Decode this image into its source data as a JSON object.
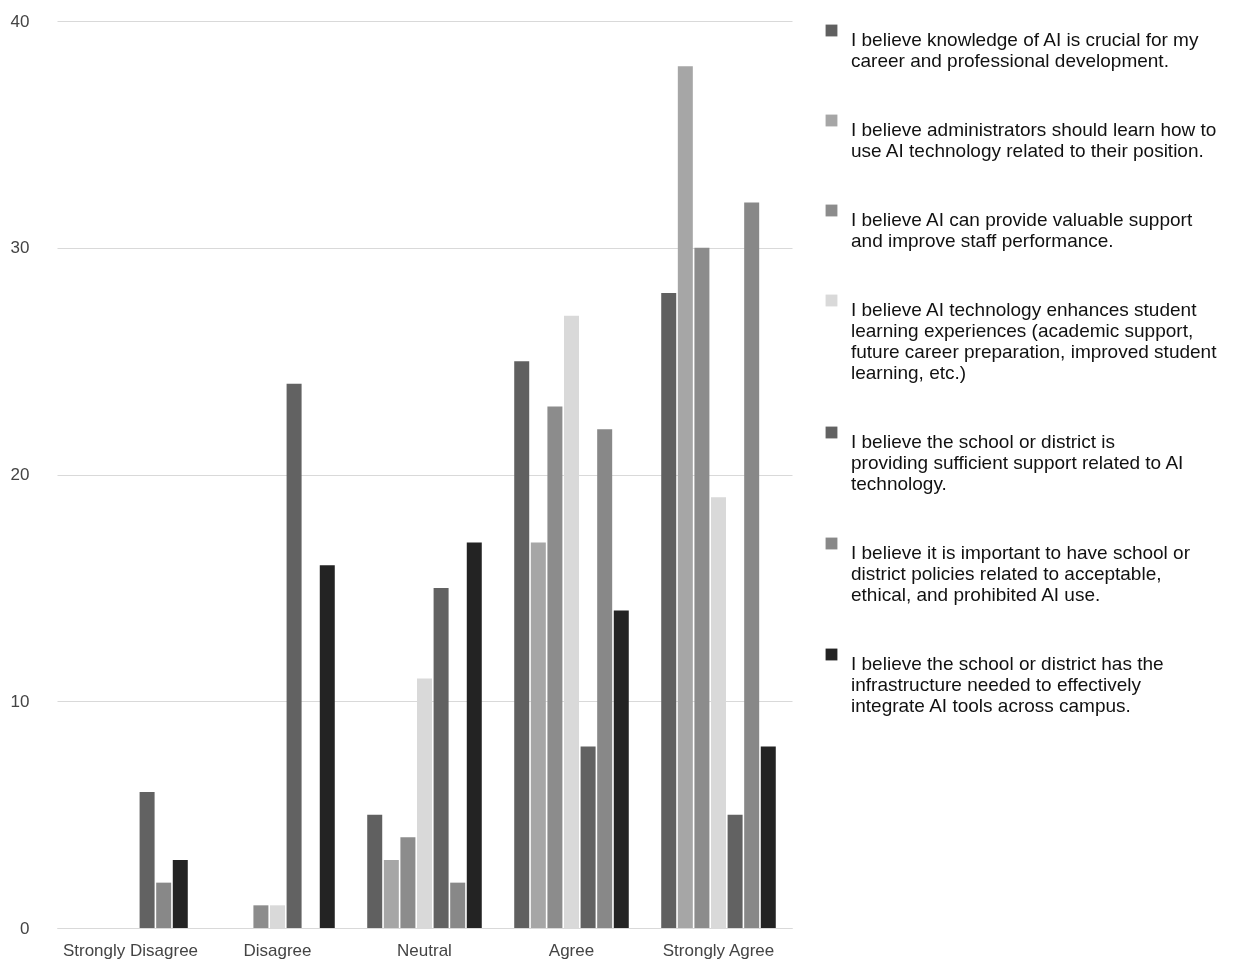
{
  "chart_data": {
    "type": "bar",
    "categories": [
      "Strongly Disagree",
      "Disagree",
      "Neutral",
      "Agree",
      "Strongly Agree"
    ],
    "series": [
      {
        "name": "I believe knowledge of AI is crucial for my career and professional development.",
        "color": "#606060",
        "values": [
          0,
          0,
          5,
          25,
          28
        ]
      },
      {
        "name": "I believe administrators should learn how to use AI technology related to their position.",
        "color": "#a6a6a6",
        "values": [
          0,
          0,
          3,
          17,
          38
        ]
      },
      {
        "name": "I believe AI can provide valuable support and improve staff performance.",
        "color": "#8c8c8c",
        "values": [
          0,
          1,
          4,
          23,
          30
        ]
      },
      {
        "name": "I believe AI technology enhances student learning experiences (academic support, future career preparation, improved student learning, etc.)",
        "color": "#d9d9d9",
        "values": [
          0,
          1,
          11,
          27,
          19
        ]
      },
      {
        "name": "I believe the school or district is providing sufficient support related to AI technology.",
        "color": "#626262",
        "values": [
          6,
          24,
          15,
          8,
          5
        ]
      },
      {
        "name": "I believe it is important to have school or district policies related to acceptable, ethical, and prohibited AI use.",
        "color": "#888888",
        "values": [
          2,
          0,
          2,
          22,
          32
        ]
      },
      {
        "name": "I believe the school or district has the infrastructure needed to effectively integrate AI tools across campus.",
        "color": "#232323",
        "values": [
          3,
          16,
          17,
          14,
          8
        ]
      }
    ],
    "ylim": [
      0,
      40
    ],
    "yticks": [
      0,
      10,
      20,
      30,
      40
    ],
    "grid": "y",
    "legend": "right"
  }
}
